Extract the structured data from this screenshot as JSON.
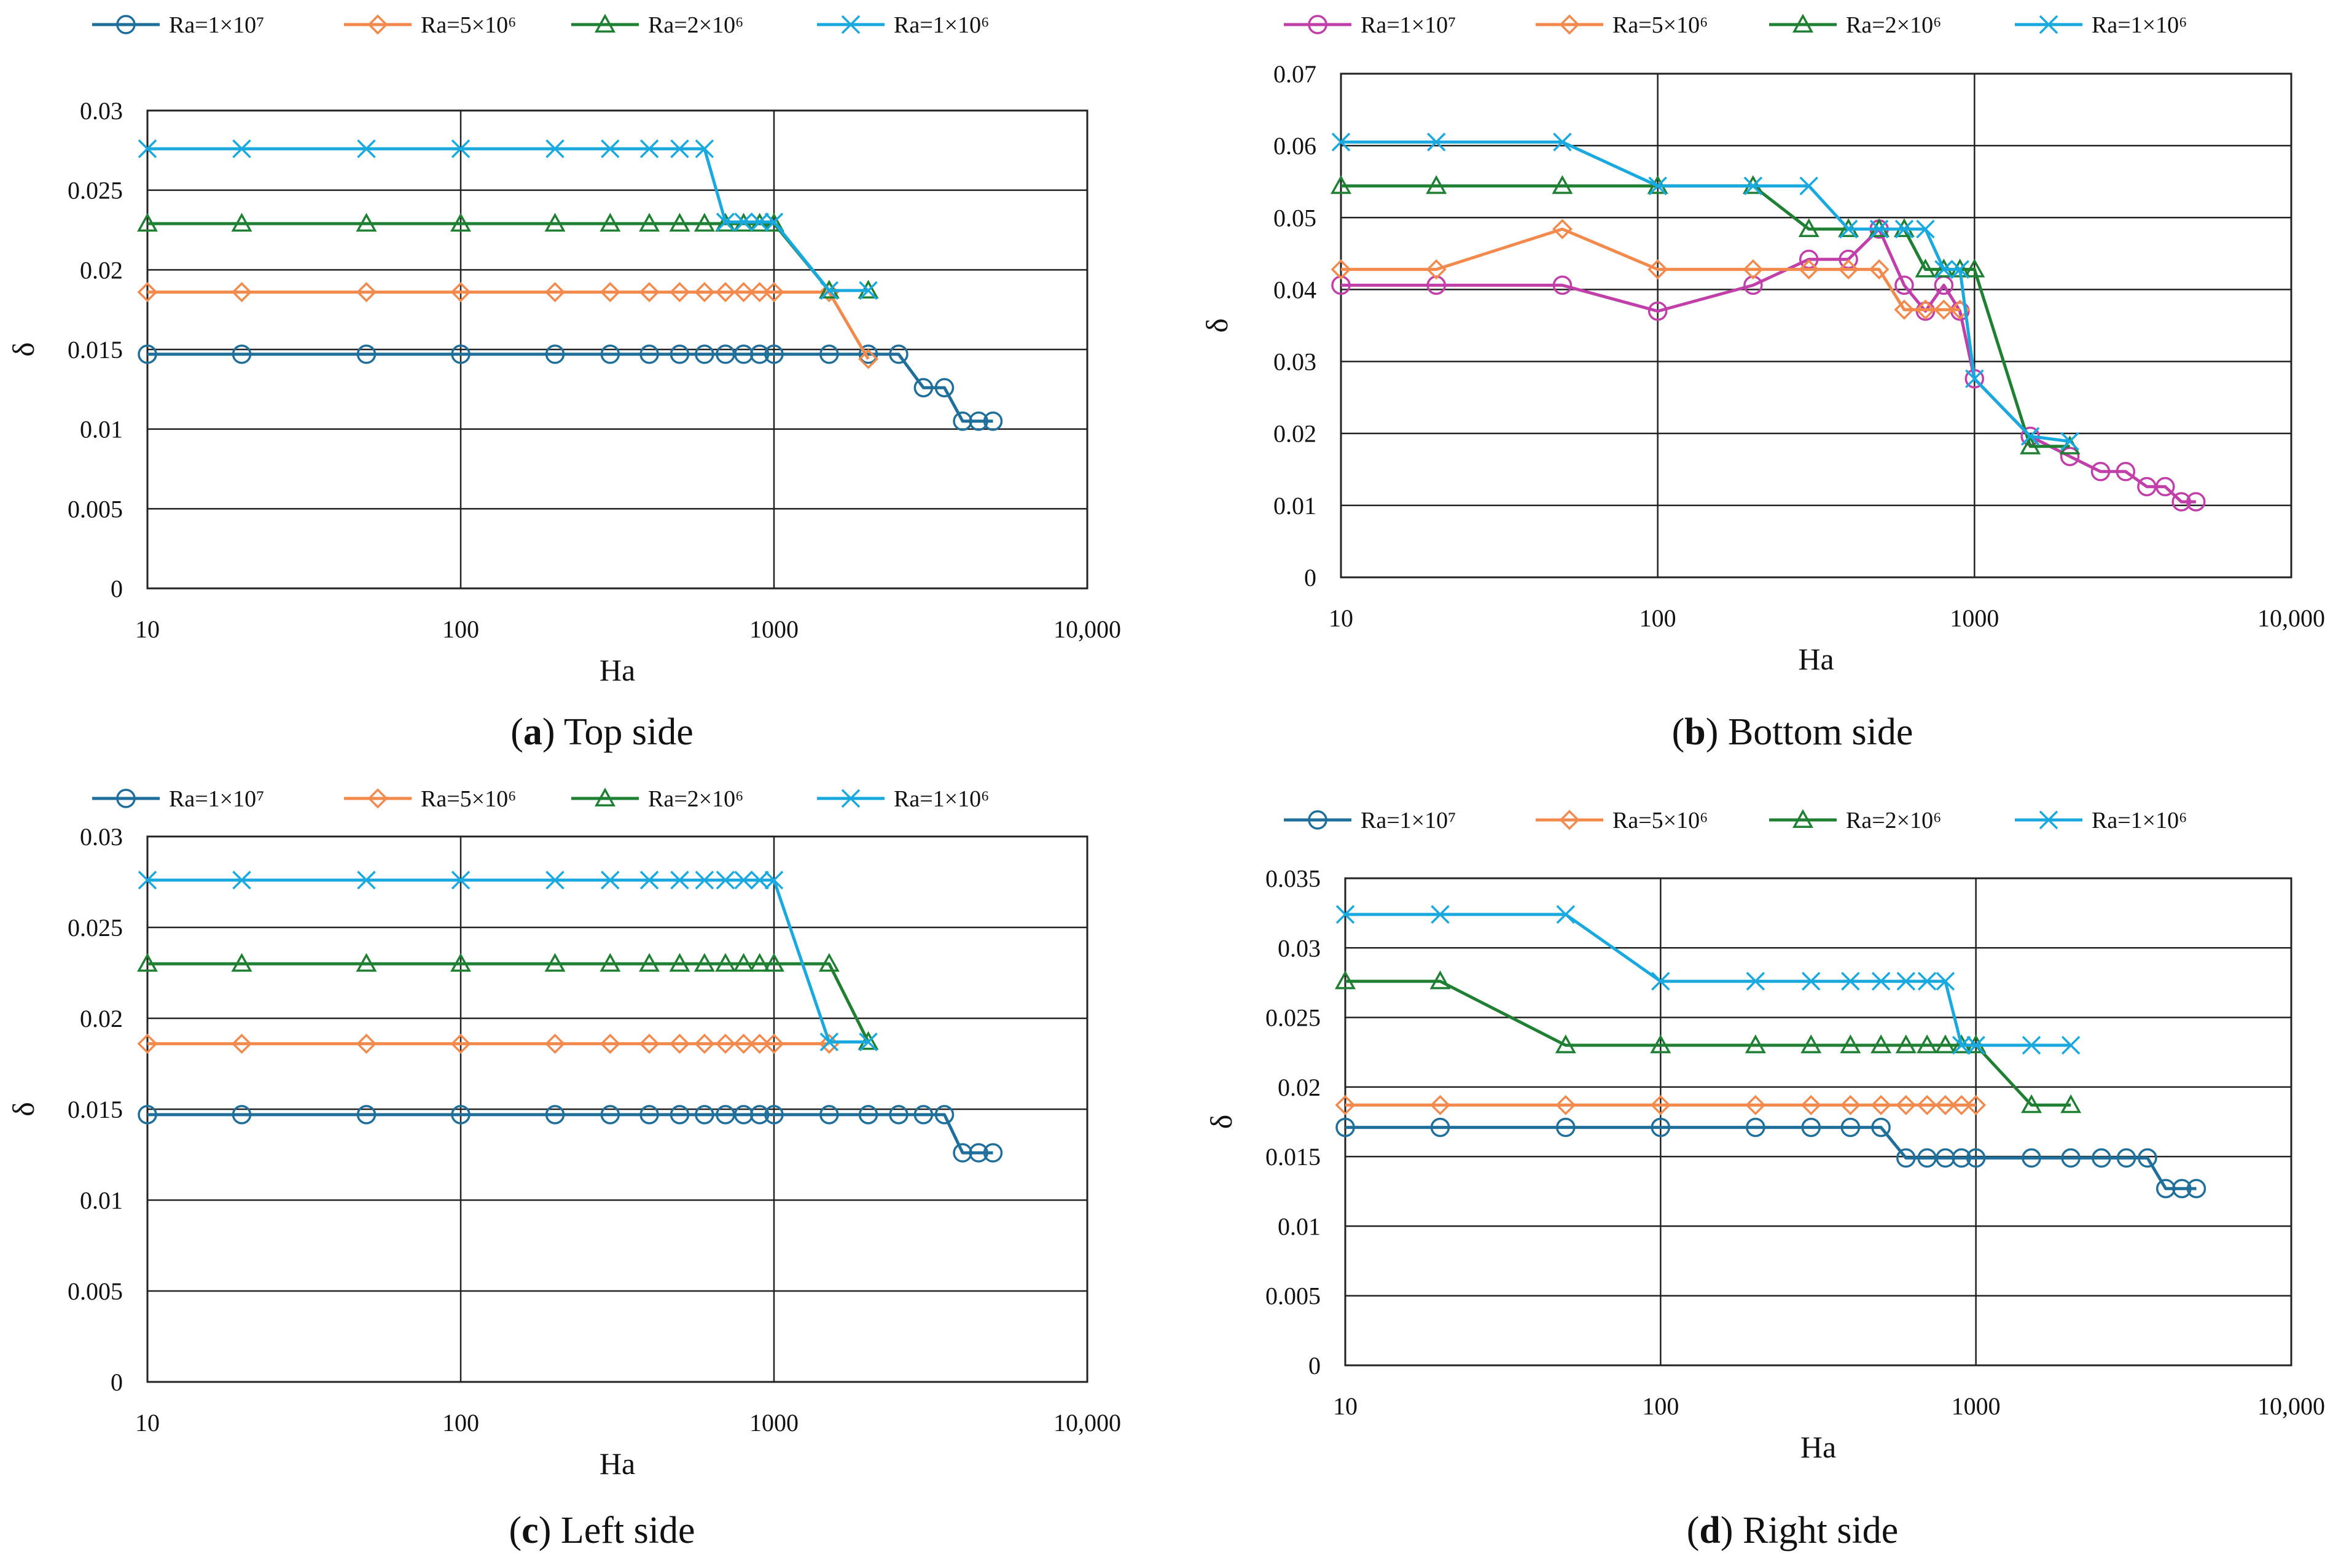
{
  "figure": {
    "captions": [
      {
        "letter": "a",
        "text": " Top side"
      },
      {
        "letter": "b",
        "text": " Bottom side"
      },
      {
        "letter": "c",
        "text": " Left side"
      },
      {
        "letter": "d",
        "text": " Right side"
      }
    ]
  },
  "legend_labels": [
    "Ra=1×10⁷",
    "Ra=5×10⁶",
    "Ra=2×10⁶",
    "Ra=1×10⁶"
  ],
  "colors": {
    "Ra=1e7": "#1f6f9a",
    "Ra=1e7_bottom": "#c13fa8",
    "Ra=5e6": "#f28a4e",
    "Ra=2e6": "#1f7f32",
    "Ra=1e6": "#19a9df"
  },
  "chart_data": [
    {
      "id": "a",
      "type": "line",
      "title": "Top side",
      "xlabel": "Ha",
      "ylabel": "δ",
      "xscale": "log",
      "xlim": [
        10,
        10000
      ],
      "ylim": [
        0,
        0.03
      ],
      "xticks": [
        10,
        100,
        1000,
        10000
      ],
      "xtick_labels": [
        "10",
        "100",
        "1000",
        "10,000"
      ],
      "yticks": [
        0,
        0.005,
        0.01,
        0.015,
        0.02,
        0.025,
        0.03
      ],
      "ytick_labels": [
        "0",
        "0.005",
        "0.01",
        "0.015",
        "0.02",
        "0.025",
        "0.03"
      ],
      "legend_position": "top",
      "series": [
        {
          "name": "Ra=1×10⁷",
          "color": "#1f6f9a",
          "marker": "circle",
          "x": [
            10,
            20,
            50,
            100,
            200,
            300,
            400,
            500,
            600,
            700,
            800,
            900,
            1000,
            1500,
            2000,
            2500,
            3000,
            3500,
            4000,
            4500,
            5000
          ],
          "y": [
            0.0147,
            0.0147,
            0.0147,
            0.0147,
            0.0147,
            0.0147,
            0.0147,
            0.0147,
            0.0147,
            0.0147,
            0.0147,
            0.0147,
            0.0147,
            0.0147,
            0.0147,
            0.0147,
            0.0126,
            0.0126,
            0.0105,
            0.0105,
            0.0105
          ]
        },
        {
          "name": "Ra=5×10⁶",
          "color": "#f28a4e",
          "marker": "diamond",
          "x": [
            10,
            20,
            50,
            100,
            200,
            300,
            400,
            500,
            600,
            700,
            800,
            900,
            1000,
            1500,
            2000
          ],
          "y": [
            0.0186,
            0.0186,
            0.0186,
            0.0186,
            0.0186,
            0.0186,
            0.0186,
            0.0186,
            0.0186,
            0.0186,
            0.0186,
            0.0186,
            0.0186,
            0.0186,
            0.0144
          ]
        },
        {
          "name": "Ra=2×10⁶",
          "color": "#1f7f32",
          "marker": "triangle",
          "x": [
            10,
            20,
            50,
            100,
            200,
            300,
            400,
            500,
            600,
            700,
            800,
            900,
            1000,
            1500,
            2000
          ],
          "y": [
            0.0229,
            0.0229,
            0.0229,
            0.0229,
            0.0229,
            0.0229,
            0.0229,
            0.0229,
            0.0229,
            0.0229,
            0.0229,
            0.0229,
            0.0229,
            0.0187,
            0.0187
          ]
        },
        {
          "name": "Ra=1×10⁶",
          "color": "#19a9df",
          "marker": "x",
          "x": [
            10,
            20,
            50,
            100,
            200,
            300,
            400,
            500,
            600,
            700,
            800,
            900,
            1000,
            1500,
            2000
          ],
          "y": [
            0.0276,
            0.0276,
            0.0276,
            0.0276,
            0.0276,
            0.0276,
            0.0276,
            0.0276,
            0.0276,
            0.023,
            0.023,
            0.023,
            0.023,
            0.0187,
            0.0187
          ]
        }
      ]
    },
    {
      "id": "b",
      "type": "line",
      "title": "Bottom side",
      "xlabel": "Ha",
      "ylabel": "δ",
      "xscale": "log",
      "xlim": [
        10,
        10000
      ],
      "ylim": [
        0,
        0.07
      ],
      "xticks": [
        10,
        100,
        1000,
        10000
      ],
      "xtick_labels": [
        "10",
        "100",
        "1000",
        "10,000"
      ],
      "yticks": [
        0,
        0.01,
        0.02,
        0.03,
        0.04,
        0.05,
        0.06,
        0.07
      ],
      "ytick_labels": [
        "0",
        "0.01",
        "0.02",
        "0.03",
        "0.04",
        "0.05",
        "0.06",
        "0.07"
      ],
      "legend_position": "top",
      "series": [
        {
          "name": "Ra=1×10⁷",
          "color": "#c13fa8",
          "marker": "circle",
          "x": [
            10,
            20,
            50,
            100,
            200,
            300,
            400,
            500,
            600,
            700,
            800,
            900,
            1000,
            1500,
            2000,
            2500,
            3000,
            3500,
            4000,
            4500,
            5000
          ],
          "y": [
            0.0406,
            0.0406,
            0.0406,
            0.037,
            0.0406,
            0.0442,
            0.0442,
            0.0484,
            0.0406,
            0.037,
            0.0406,
            0.037,
            0.0276,
            0.0196,
            0.0168,
            0.0147,
            0.0147,
            0.0126,
            0.0126,
            0.0105,
            0.0105
          ]
        },
        {
          "name": "Ra=5×10⁶",
          "color": "#f28a4e",
          "marker": "diamond",
          "x": [
            10,
            20,
            50,
            100,
            200,
            300,
            400,
            500,
            600,
            700,
            800,
            900
          ],
          "y": [
            0.0428,
            0.0428,
            0.0484,
            0.0428,
            0.0428,
            0.0428,
            0.0428,
            0.0428,
            0.0372,
            0.0372,
            0.0372,
            0.0372
          ]
        },
        {
          "name": "Ra=2×10⁶",
          "color": "#1f7f32",
          "marker": "triangle",
          "x": [
            10,
            20,
            50,
            100,
            200,
            300,
            400,
            500,
            600,
            700,
            800,
            900,
            1000,
            1500,
            2000
          ],
          "y": [
            0.0544,
            0.0544,
            0.0544,
            0.0544,
            0.0544,
            0.0484,
            0.0484,
            0.0484,
            0.0484,
            0.0428,
            0.0428,
            0.0428,
            0.0428,
            0.0182,
            0.0182
          ]
        },
        {
          "name": "Ra=1×10⁶",
          "color": "#19a9df",
          "marker": "x",
          "x": [
            10,
            20,
            50,
            100,
            200,
            300,
            400,
            500,
            600,
            700,
            800,
            900,
            1000,
            1500,
            2000
          ],
          "y": [
            0.0605,
            0.0605,
            0.0605,
            0.0544,
            0.0544,
            0.0544,
            0.0484,
            0.0484,
            0.0484,
            0.0484,
            0.0428,
            0.0428,
            0.0276,
            0.0196,
            0.0189
          ]
        }
      ]
    },
    {
      "id": "c",
      "type": "line",
      "title": "Left side",
      "xlabel": "Ha",
      "ylabel": "δ",
      "xscale": "log",
      "xlim": [
        10,
        10000
      ],
      "ylim": [
        0,
        0.03
      ],
      "xticks": [
        10,
        100,
        1000,
        10000
      ],
      "xtick_labels": [
        "10",
        "100",
        "1000",
        "10,000"
      ],
      "yticks": [
        0,
        0.005,
        0.01,
        0.015,
        0.02,
        0.025,
        0.03
      ],
      "ytick_labels": [
        "0",
        "0.005",
        "0.01",
        "0.015",
        "0.02",
        "0.025",
        "0.03"
      ],
      "legend_position": "top",
      "series": [
        {
          "name": "Ra=1×10⁷",
          "color": "#1f6f9a",
          "marker": "circle",
          "x": [
            10,
            20,
            50,
            100,
            200,
            300,
            400,
            500,
            600,
            700,
            800,
            900,
            1000,
            1500,
            2000,
            2500,
            3000,
            3500,
            4000,
            4500,
            5000
          ],
          "y": [
            0.0147,
            0.0147,
            0.0147,
            0.0147,
            0.0147,
            0.0147,
            0.0147,
            0.0147,
            0.0147,
            0.0147,
            0.0147,
            0.0147,
            0.0147,
            0.0147,
            0.0147,
            0.0147,
            0.0147,
            0.0147,
            0.0126,
            0.0126,
            0.0126
          ]
        },
        {
          "name": "Ra=5×10⁶",
          "color": "#f28a4e",
          "marker": "diamond",
          "x": [
            10,
            20,
            50,
            100,
            200,
            300,
            400,
            500,
            600,
            700,
            800,
            900,
            1000,
            1500
          ],
          "y": [
            0.0186,
            0.0186,
            0.0186,
            0.0186,
            0.0186,
            0.0186,
            0.0186,
            0.0186,
            0.0186,
            0.0186,
            0.0186,
            0.0186,
            0.0186,
            0.0186
          ]
        },
        {
          "name": "Ra=2×10⁶",
          "color": "#1f7f32",
          "marker": "triangle",
          "x": [
            10,
            20,
            50,
            100,
            200,
            300,
            400,
            500,
            600,
            700,
            800,
            900,
            1000,
            1500,
            2000
          ],
          "y": [
            0.023,
            0.023,
            0.023,
            0.023,
            0.023,
            0.023,
            0.023,
            0.023,
            0.023,
            0.023,
            0.023,
            0.023,
            0.023,
            0.023,
            0.0187
          ]
        },
        {
          "name": "Ra=1×10⁶",
          "color": "#19a9df",
          "marker": "x",
          "x": [
            10,
            20,
            50,
            100,
            200,
            300,
            400,
            500,
            600,
            700,
            800,
            900,
            1000,
            1500,
            2000
          ],
          "y": [
            0.0276,
            0.0276,
            0.0276,
            0.0276,
            0.0276,
            0.0276,
            0.0276,
            0.0276,
            0.0276,
            0.0276,
            0.0276,
            0.0276,
            0.0276,
            0.0187,
            0.0187
          ]
        }
      ]
    },
    {
      "id": "d",
      "type": "line",
      "title": "Right side",
      "xlabel": "Ha",
      "ylabel": "δ",
      "xscale": "log",
      "xlim": [
        10,
        10000
      ],
      "ylim": [
        0,
        0.035
      ],
      "xticks": [
        10,
        100,
        1000,
        10000
      ],
      "xtick_labels": [
        "10",
        "100",
        "1000",
        "10,000"
      ],
      "yticks": [
        0,
        0.005,
        0.01,
        0.015,
        0.02,
        0.025,
        0.03,
        0.035
      ],
      "ytick_labels": [
        "0",
        "0.005",
        "0.01",
        "0.015",
        "0.02",
        "0.025",
        "0.03",
        "0.035"
      ],
      "legend_position": "top",
      "series": [
        {
          "name": "Ra=1×10⁷",
          "color": "#1f6f9a",
          "marker": "circle",
          "x": [
            10,
            20,
            50,
            100,
            200,
            300,
            400,
            500,
            600,
            700,
            800,
            900,
            1000,
            1500,
            2000,
            2500,
            3000,
            3500,
            4000,
            4500,
            5000
          ],
          "y": [
            0.0171,
            0.0171,
            0.0171,
            0.0171,
            0.0171,
            0.0171,
            0.0171,
            0.0171,
            0.0149,
            0.0149,
            0.0149,
            0.0149,
            0.0149,
            0.0149,
            0.0149,
            0.0149,
            0.0149,
            0.0149,
            0.0127,
            0.0127,
            0.0127
          ]
        },
        {
          "name": "Ra=5×10⁶",
          "color": "#f28a4e",
          "marker": "diamond",
          "x": [
            10,
            20,
            50,
            100,
            200,
            300,
            400,
            500,
            600,
            700,
            800,
            900,
            1000
          ],
          "y": [
            0.0187,
            0.0187,
            0.0187,
            0.0187,
            0.0187,
            0.0187,
            0.0187,
            0.0187,
            0.0187,
            0.0187,
            0.0187,
            0.0187,
            0.0187
          ]
        },
        {
          "name": "Ra=2×10⁶",
          "color": "#1f7f32",
          "marker": "triangle",
          "x": [
            10,
            20,
            50,
            100,
            200,
            300,
            400,
            500,
            600,
            700,
            800,
            900,
            1000,
            1500,
            2000
          ],
          "y": [
            0.0276,
            0.0276,
            0.023,
            0.023,
            0.023,
            0.023,
            0.023,
            0.023,
            0.023,
            0.023,
            0.023,
            0.023,
            0.023,
            0.0187,
            0.0187
          ]
        },
        {
          "name": "Ra=1×10⁶",
          "color": "#19a9df",
          "marker": "x",
          "x": [
            10,
            20,
            50,
            100,
            200,
            300,
            400,
            500,
            600,
            700,
            800,
            900,
            1000,
            1500,
            2000
          ],
          "y": [
            0.0324,
            0.0324,
            0.0324,
            0.0276,
            0.0276,
            0.0276,
            0.0276,
            0.0276,
            0.0276,
            0.0276,
            0.0276,
            0.023,
            0.023,
            0.023,
            0.023
          ]
        }
      ]
    }
  ]
}
